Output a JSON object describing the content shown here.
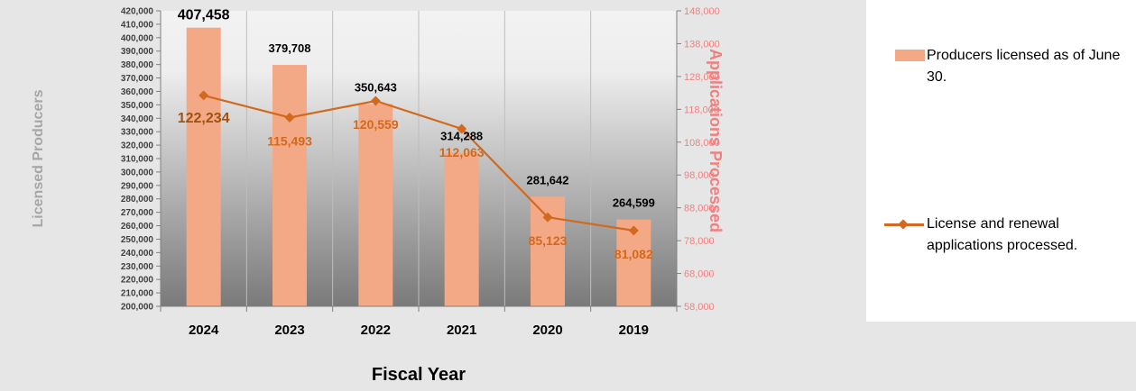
{
  "chart_data": {
    "type": "bar",
    "categories": [
      "2024",
      "2023",
      "2022",
      "2021",
      "2020",
      "2019"
    ],
    "series": [
      {
        "name": "Producers licensed as of June 30.",
        "type": "bar",
        "axis": "left",
        "values": [
          407458,
          379708,
          350643,
          314288,
          281642,
          264599
        ],
        "labels": [
          "407,458",
          "379,708",
          "350,643",
          "314,288",
          "281,642",
          "264,599"
        ],
        "color": "#f4a986"
      },
      {
        "name": "License and renewal applications processed.",
        "type": "line",
        "axis": "right",
        "values": [
          122234,
          115493,
          120559,
          112063,
          85123,
          81082
        ],
        "labels": [
          "122,234",
          "115,493",
          "120,559",
          "112,063",
          "85,123",
          "81,082"
        ],
        "color": "#d2691e"
      }
    ],
    "xlabel": "Fiscal Year",
    "ylabel": "Licensed Producers",
    "y2label": "Applications Processed",
    "ylim": [
      200000,
      420000
    ],
    "y2lim": [
      58000,
      148000
    ],
    "yticks": [
      "420,000",
      "410,000",
      "400,000",
      "390,000",
      "380,000",
      "370,000",
      "360,000",
      "350,000",
      "340,000",
      "330,000",
      "320,000",
      "310,000",
      "300,000",
      "290,000",
      "280,000",
      "270,000",
      "260,000",
      "250,000",
      "240,000",
      "230,000",
      "220,000",
      "210,000",
      "200,000"
    ],
    "y2ticks": [
      "148,000",
      "138,000",
      "128,000",
      "118,000",
      "108,000",
      "98,000",
      "88,000",
      "78,000",
      "68,000",
      "58,000"
    ],
    "legend_position": "right",
    "grid": "vertical",
    "colors": {
      "bar": "#f4a986",
      "line": "#d2691e",
      "line_label": "#d2691e",
      "right_axis": "#f08080",
      "axis_title": "#a6a6a6"
    }
  }
}
